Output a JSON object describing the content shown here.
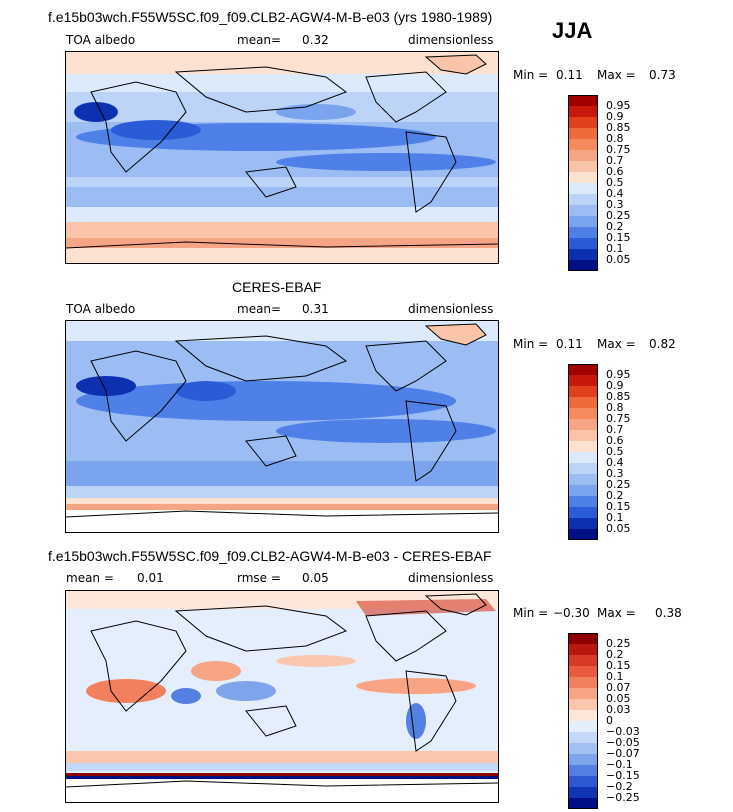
{
  "season": "JJA",
  "panels": [
    {
      "title": "f.e15b03wch.F55W5SC.f09_f09.CLB2-AGW4-M-B-e03 (yrs 1980-1989)",
      "left_label": "TOA albedo",
      "mean_text": "mean=",
      "mean_value": "0.32",
      "units": "dimensionless",
      "min_label": "Min =",
      "min_value": "0.11",
      "max_label": "Max =",
      "max_value": "0.73",
      "colorbar": {
        "labels": [
          "0.95",
          "0.9",
          "0.85",
          "0.8",
          "0.75",
          "0.7",
          "0.6",
          "0.5",
          "0.4",
          "0.3",
          "0.25",
          "0.2",
          "0.15",
          "0.1",
          "0.05"
        ],
        "colors": [
          "#a00000",
          "#c8180c",
          "#e0401c",
          "#ee6a3a",
          "#f48a5e",
          "#f6a584",
          "#fac4a8",
          "#fde2d2",
          "#dceafc",
          "#bcd4f8",
          "#9bbdf4",
          "#7aa4ee",
          "#4f80e8",
          "#2a5cd8",
          "#0c30b0",
          "#000f84"
        ]
      }
    },
    {
      "title": "CERES-EBAF",
      "left_label": "TOA albedo",
      "mean_text": "mean=",
      "mean_value": "0.31",
      "units": "dimensionless",
      "min_label": "Min =",
      "min_value": "0.11",
      "max_label": "Max =",
      "max_value": "0.82",
      "colorbar": {
        "labels": [
          "0.95",
          "0.9",
          "0.85",
          "0.8",
          "0.75",
          "0.7",
          "0.6",
          "0.5",
          "0.4",
          "0.3",
          "0.25",
          "0.2",
          "0.15",
          "0.1",
          "0.05"
        ],
        "colors": [
          "#a00000",
          "#c8180c",
          "#e0401c",
          "#ee6a3a",
          "#f48a5e",
          "#f6a584",
          "#fac4a8",
          "#fde2d2",
          "#dceafc",
          "#bcd4f8",
          "#9bbdf4",
          "#7aa4ee",
          "#4f80e8",
          "#2a5cd8",
          "#0c30b0",
          "#000f84"
        ]
      }
    },
    {
      "title": "f.e15b03wch.F55W5SC.f09_f09.CLB2-AGW4-M-B-e03 - CERES-EBAF",
      "left_label": "mean =",
      "mean_text": "",
      "mean_value": "0.01",
      "rmse_label": "rmse =",
      "rmse_value": "0.05",
      "units": "dimensionless",
      "min_label": "Min =",
      "min_value": "−0.30",
      "max_label": "Max =",
      "max_value": "0.38",
      "colorbar": {
        "labels": [
          "0.25",
          "0.2",
          "0.15",
          "0.1",
          "0.07",
          "0.05",
          "0.03",
          "0",
          "−0.03",
          "−0.05",
          "−0.07",
          "−0.1",
          "−0.15",
          "−0.2",
          "−0.25"
        ],
        "colors": [
          "#8c0000",
          "#b81810",
          "#d63a26",
          "#ea5a3e",
          "#f2805e",
          "#f7a484",
          "#fbc6ae",
          "#fde6da",
          "#e4eefc",
          "#c4d8f8",
          "#a2c0f2",
          "#7ea4ec",
          "#5480e4",
          "#2e58d4",
          "#1034b4",
          "#000f84"
        ]
      }
    }
  ]
}
